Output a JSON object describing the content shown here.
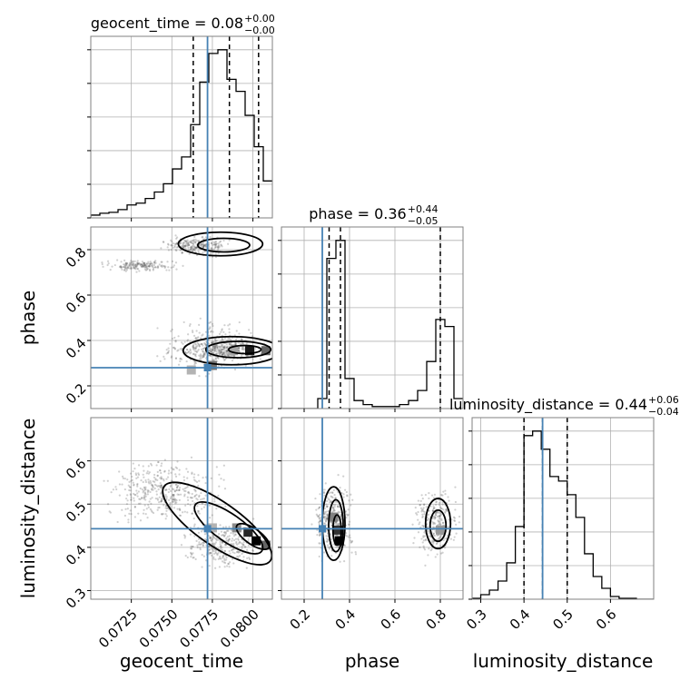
{
  "chart_data": {
    "type": "corner",
    "parameters": [
      "geocent_time",
      "phase",
      "luminosity_distance"
    ],
    "truth": {
      "geocent_time": 0.0772,
      "phase": 0.28,
      "luminosity_distance": 0.443
    },
    "truth_color": "#4682b4",
    "grid": true,
    "ranges": {
      "geocent_time": [
        0.07,
        0.0812
      ],
      "phase": [
        0.1,
        0.9
      ],
      "luminosity_distance": [
        0.28,
        0.7
      ]
    },
    "ticks": {
      "geocent_time": {
        "values": [
          0.0725,
          0.075,
          0.0775,
          0.08
        ],
        "labels": [
          "0.0725",
          "0.0750",
          "0.0775",
          "0.0800"
        ]
      },
      "phase": {
        "values": [
          0.2,
          0.4,
          0.6,
          0.8
        ],
        "labels": [
          "0.2",
          "0.4",
          "0.6",
          "0.8"
        ]
      },
      "luminosity_distance": {
        "values": [
          0.3,
          0.4,
          0.5,
          0.6
        ],
        "labels": [
          "0.3",
          "0.4",
          "0.5",
          "0.6"
        ]
      }
    },
    "marginals": [
      {
        "param": "geocent_time",
        "title": "geocent_time = 0.08",
        "title_plus": "+0.00",
        "title_minus": "−0.00",
        "quantiles": [
          0.07632,
          0.07855,
          0.08035
        ],
        "bin_edges": [
          0.07,
          0.07056,
          0.07112,
          0.07168,
          0.07224,
          0.0728,
          0.07336,
          0.07392,
          0.07448,
          0.07504,
          0.0756,
          0.07616,
          0.07672,
          0.07728,
          0.07784,
          0.0784,
          0.07896,
          0.07952,
          0.08008,
          0.08064,
          0.0812
        ],
        "counts": [
          3,
          5,
          6,
          9,
          14,
          16,
          21,
          28,
          37,
          53,
          66,
          101,
          147,
          178,
          182,
          150,
          137,
          111,
          77,
          40
        ]
      },
      {
        "param": "phase",
        "title": "phase = 0.36",
        "title_plus": "+0.44",
        "title_minus": "−0.05",
        "quantiles": [
          0.31,
          0.36,
          0.8
        ],
        "bin_edges": [
          0.1,
          0.14,
          0.18,
          0.22,
          0.26,
          0.3,
          0.34,
          0.38,
          0.42,
          0.46,
          0.5,
          0.54,
          0.58,
          0.62,
          0.66,
          0.7,
          0.74,
          0.78,
          0.82,
          0.86,
          0.9
        ],
        "counts": [
          0,
          0,
          0,
          0,
          10,
          150,
          168,
          30,
          8,
          4,
          2,
          2,
          2,
          4,
          8,
          18,
          47,
          89,
          82,
          10
        ]
      },
      {
        "param": "luminosity_distance",
        "title": "luminosity_distance = 0.44",
        "title_plus": "+0.06",
        "title_minus": "−0.04",
        "quantiles": [
          0.4,
          0.443,
          0.5
        ],
        "bin_edges": [
          0.28,
          0.3,
          0.32,
          0.34,
          0.36,
          0.38,
          0.4,
          0.42,
          0.44,
          0.46,
          0.48,
          0.5,
          0.52,
          0.54,
          0.56,
          0.58,
          0.6,
          0.62,
          0.64,
          0.66,
          0.68,
          0.7
        ],
        "counts": [
          1,
          5,
          10,
          20,
          40,
          80,
          180,
          185,
          165,
          135,
          130,
          115,
          90,
          50,
          25,
          12,
          3,
          1,
          1,
          0,
          0
        ]
      }
    ],
    "joint": [
      {
        "x": "geocent_time",
        "y": "phase",
        "scatter_regions": [
          {
            "x0": 0.07,
            "x1": 0.076,
            "y0": 0.7,
            "y1": 0.76,
            "n": 180
          },
          {
            "x0": 0.074,
            "x1": 0.079,
            "y0": 0.76,
            "y1": 0.87,
            "n": 260
          },
          {
            "x0": 0.0735,
            "x1": 0.0812,
            "y0": 0.22,
            "y1": 0.52,
            "n": 320
          },
          {
            "x0": 0.0755,
            "x1": 0.0812,
            "y0": 0.3,
            "y1": 0.42,
            "n": 260
          }
        ],
        "contours": [
          {
            "cx": 0.078,
            "cy": 0.825,
            "rx": 0.0026,
            "ry": 0.052,
            "rot": 0
          },
          {
            "cx": 0.0782,
            "cy": 0.82,
            "rx": 0.0016,
            "ry": 0.03,
            "rot": 0
          },
          {
            "cx": 0.0787,
            "cy": 0.355,
            "rx": 0.003,
            "ry": 0.062,
            "rot": 0
          },
          {
            "cx": 0.0791,
            "cy": 0.36,
            "rx": 0.002,
            "ry": 0.036,
            "rot": 0
          },
          {
            "cx": 0.0795,
            "cy": 0.36,
            "rx": 0.001,
            "ry": 0.018,
            "rot": 0
          }
        ],
        "density_cells": [
          {
            "x": 0.0775,
            "y": 0.29,
            "level": 0.55
          },
          {
            "x": 0.0798,
            "y": 0.355,
            "level": 0.9
          },
          {
            "x": 0.0808,
            "y": 0.355,
            "level": 0.6
          },
          {
            "x": 0.0788,
            "y": 0.355,
            "level": 0.35
          },
          {
            "x": 0.0762,
            "y": 0.27,
            "level": 0.3
          }
        ]
      },
      {
        "x": "geocent_time",
        "y": "luminosity_distance",
        "scatter_regions": [
          {
            "x0": 0.07,
            "x1": 0.079,
            "y0": 0.44,
            "y1": 0.62,
            "n": 420
          },
          {
            "x0": 0.075,
            "x1": 0.0812,
            "y0": 0.33,
            "y1": 0.48,
            "n": 320
          }
        ],
        "contours": [
          {
            "cx": 0.0778,
            "cy": 0.455,
            "rx": 0.004,
            "ry": 0.05,
            "rot": 35
          },
          {
            "cx": 0.0785,
            "cy": 0.445,
            "rx": 0.0025,
            "ry": 0.032,
            "rot": 35
          },
          {
            "cx": 0.08,
            "cy": 0.425,
            "rx": 0.0012,
            "ry": 0.018,
            "rot": 35
          }
        ],
        "density_cells": [
          {
            "x": 0.0775,
            "y": 0.445,
            "level": 0.3
          },
          {
            "x": 0.079,
            "y": 0.445,
            "level": 0.45
          },
          {
            "x": 0.0797,
            "y": 0.435,
            "level": 0.85
          },
          {
            "x": 0.0802,
            "y": 0.415,
            "level": 1.0
          },
          {
            "x": 0.0808,
            "y": 0.405,
            "level": 0.6
          }
        ]
      },
      {
        "x": "phase",
        "y": "luminosity_distance",
        "scatter_regions": [
          {
            "x0": 0.22,
            "x1": 0.44,
            "y0": 0.34,
            "y1": 0.58,
            "n": 380
          },
          {
            "x0": 0.66,
            "x1": 0.9,
            "y0": 0.35,
            "y1": 0.56,
            "n": 280
          }
        ],
        "contours": [
          {
            "cx": 0.33,
            "cy": 0.455,
            "rx": 0.05,
            "ry": 0.085,
            "rot": 0
          },
          {
            "cx": 0.34,
            "cy": 0.45,
            "rx": 0.032,
            "ry": 0.06,
            "rot": 0
          },
          {
            "cx": 0.345,
            "cy": 0.44,
            "rx": 0.018,
            "ry": 0.035,
            "rot": 0
          },
          {
            "cx": 0.79,
            "cy": 0.455,
            "rx": 0.055,
            "ry": 0.058,
            "rot": 0
          },
          {
            "cx": 0.79,
            "cy": 0.45,
            "rx": 0.035,
            "ry": 0.036,
            "rot": 0
          }
        ],
        "density_cells": [
          {
            "x": 0.33,
            "y": 0.47,
            "level": 0.5
          },
          {
            "x": 0.35,
            "y": 0.44,
            "level": 0.8
          },
          {
            "x": 0.355,
            "y": 0.415,
            "level": 1.0
          },
          {
            "x": 0.8,
            "y": 0.44,
            "level": 0.4
          }
        ]
      }
    ]
  }
}
